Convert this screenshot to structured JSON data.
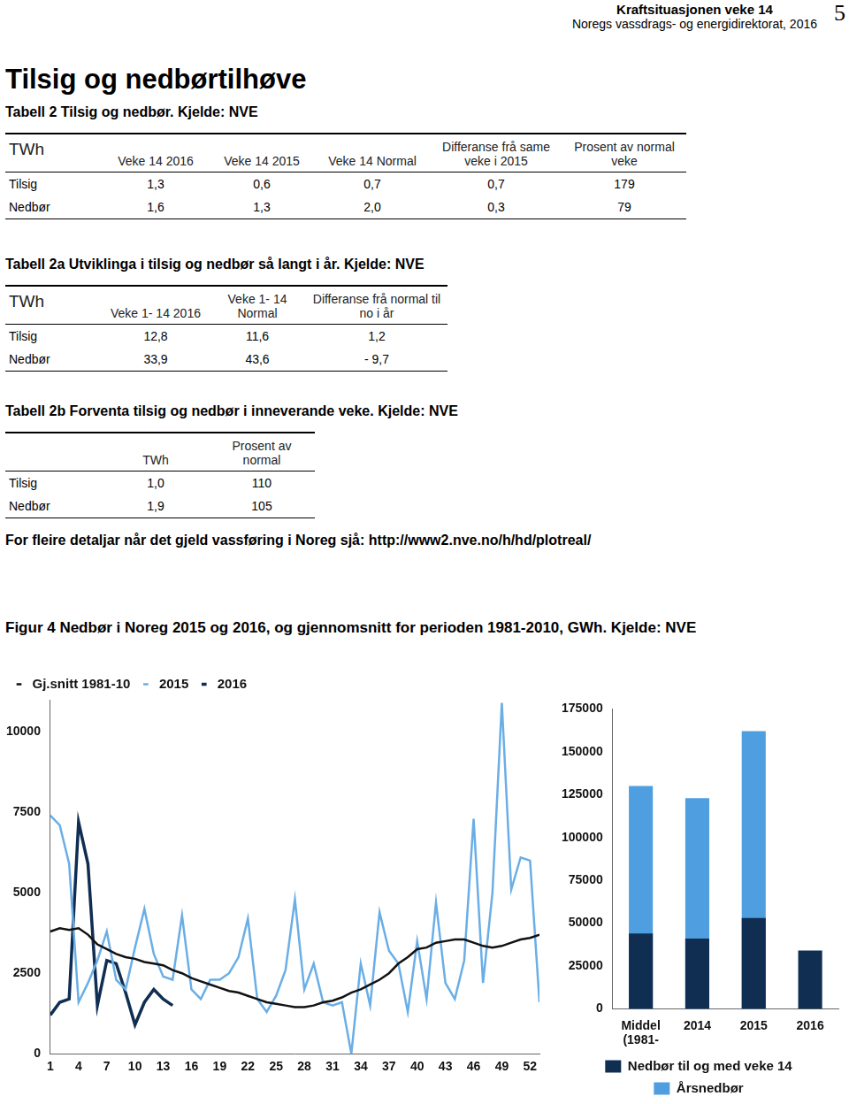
{
  "header": {
    "title": "Kraftsituasjonen veke 14",
    "subtitle": "Noregs vassdrags- og energidirektorat, 2016",
    "page": "5"
  },
  "section": {
    "title": "Tilsig og nedbørtilhøve"
  },
  "tables": [
    {
      "caption": "Tabell 2 Tilsig og nedbør. Kjelde: NVE",
      "unit": "TWh",
      "columns": [
        "Veke 14 2016",
        "Veke 14 2015",
        "Veke 14 Normal",
        "Differanse frå same veke i 2015",
        "Prosent av normal veke"
      ],
      "rows": [
        [
          "Tilsig",
          "1,3",
          "0,6",
          "0,7",
          "0,7",
          "179"
        ],
        [
          "Nedbør",
          "1,6",
          "1,3",
          "2,0",
          "0,3",
          "79"
        ]
      ]
    },
    {
      "caption": "Tabell 2a Utviklinga i tilsig og nedbør så langt i år. Kjelde: NVE",
      "unit": "TWh",
      "columns": [
        "Veke 1- 14 2016",
        "Veke 1- 14 Normal",
        "Differanse frå normal til no i år"
      ],
      "rows": [
        [
          "Tilsig",
          "12,8",
          "11,6",
          "1,2"
        ],
        [
          "Nedbør",
          "33,9",
          "43,6",
          "- 9,7"
        ]
      ]
    },
    {
      "caption": "Tabell 2b Forventa tilsig og nedbør i inneverande veke. Kjelde: NVE",
      "columns": [
        "TWh",
        "Prosent av normal"
      ],
      "rows": [
        [
          "Tilsig",
          "1,0",
          "110"
        ],
        [
          "Nedbør",
          "1,9",
          "105"
        ]
      ]
    }
  ],
  "note": "For fleire detaljar når det gjeld vassføring i Noreg sjå: http://www2.nve.no/h/hd/plotreal/",
  "figure": {
    "caption": "Figur 4 Nedbør i Noreg 2015 og 2016, og gjennomsnitt for perioden 1981-2010, GWh. Kjelde: NVE"
  },
  "chart_data": [
    {
      "type": "line",
      "categories": [
        1,
        null,
        null,
        4,
        null,
        null,
        7,
        null,
        null,
        10,
        null,
        null,
        13,
        null,
        null,
        16,
        null,
        null,
        19,
        null,
        null,
        22,
        null,
        null,
        25,
        null,
        null,
        28,
        null,
        null,
        31,
        null,
        null,
        34,
        null,
        null,
        37,
        null,
        null,
        40,
        null,
        null,
        43,
        null,
        null,
        46,
        null,
        null,
        49,
        null,
        null,
        52,
        null
      ],
      "series": [
        {
          "name": "Gj.snitt 1981-10",
          "color": "#111111",
          "values": [
            3800,
            3900,
            3850,
            3900,
            3700,
            3400,
            3250,
            3100,
            3000,
            2950,
            2850,
            2800,
            2750,
            2600,
            2500,
            2350,
            2250,
            2150,
            2050,
            1950,
            1900,
            1800,
            1700,
            1600,
            1550,
            1500,
            1450,
            1450,
            1500,
            1600,
            1650,
            1750,
            1900,
            2000,
            2150,
            2300,
            2500,
            2800,
            3000,
            3250,
            3300,
            3450,
            3500,
            3550,
            3550,
            3450,
            3350,
            3300,
            3350,
            3450,
            3550,
            3600,
            3700
          ]
        },
        {
          "name": "2015",
          "color": "#6aaee6",
          "values": [
            7400,
            7100,
            5900,
            1600,
            2200,
            2900,
            3800,
            2300,
            2000,
            3300,
            4500,
            3100,
            2400,
            2300,
            4300,
            2000,
            1700,
            2300,
            2300,
            2500,
            3000,
            4200,
            1700,
            1300,
            1800,
            2600,
            4800,
            2000,
            2800,
            1600,
            1500,
            1600,
            0,
            2800,
            1500,
            4400,
            3200,
            2800,
            1300,
            3500,
            1700,
            4700,
            2200,
            1700,
            2900,
            7300,
            2200,
            5000,
            10900,
            5100,
            6100,
            6000,
            1600
          ]
        },
        {
          "name": "2016",
          "color": "#0f2e52",
          "values": [
            1200,
            1600,
            1700,
            7200,
            5900,
            1500,
            2900,
            2800,
            1900,
            900,
            1600,
            2000,
            1700,
            1500,
            null,
            null,
            null,
            null,
            null,
            null,
            null,
            null,
            null,
            null,
            null,
            null,
            null,
            null,
            null,
            null,
            null,
            null,
            null,
            null,
            null,
            null,
            null,
            null,
            null,
            null,
            null,
            null,
            null,
            null,
            null,
            null,
            null,
            null,
            null,
            null,
            null,
            null,
            null
          ]
        }
      ],
      "ylim": [
        0,
        11000
      ],
      "yticks": [
        0,
        2500,
        5000,
        7500,
        10000
      ],
      "grid": false,
      "legend": "top-left"
    },
    {
      "type": "bar",
      "categories": [
        "Middel (1981-",
        "2014",
        "2015",
        "2016"
      ],
      "series": [
        {
          "name": "Årsnedbør",
          "color": "#4f9ee0",
          "values": [
            130000,
            123000,
            162000,
            null
          ]
        },
        {
          "name": "Nedbør til og med veke 14",
          "color": "#0f2e52",
          "values": [
            44000,
            41000,
            53000,
            34000
          ]
        }
      ],
      "stacked": false,
      "ylim": [
        0,
        175000
      ],
      "yticks": [
        0,
        25000,
        50000,
        75000,
        100000,
        125000,
        150000,
        175000
      ],
      "grid": false,
      "legend": "bottom"
    }
  ]
}
